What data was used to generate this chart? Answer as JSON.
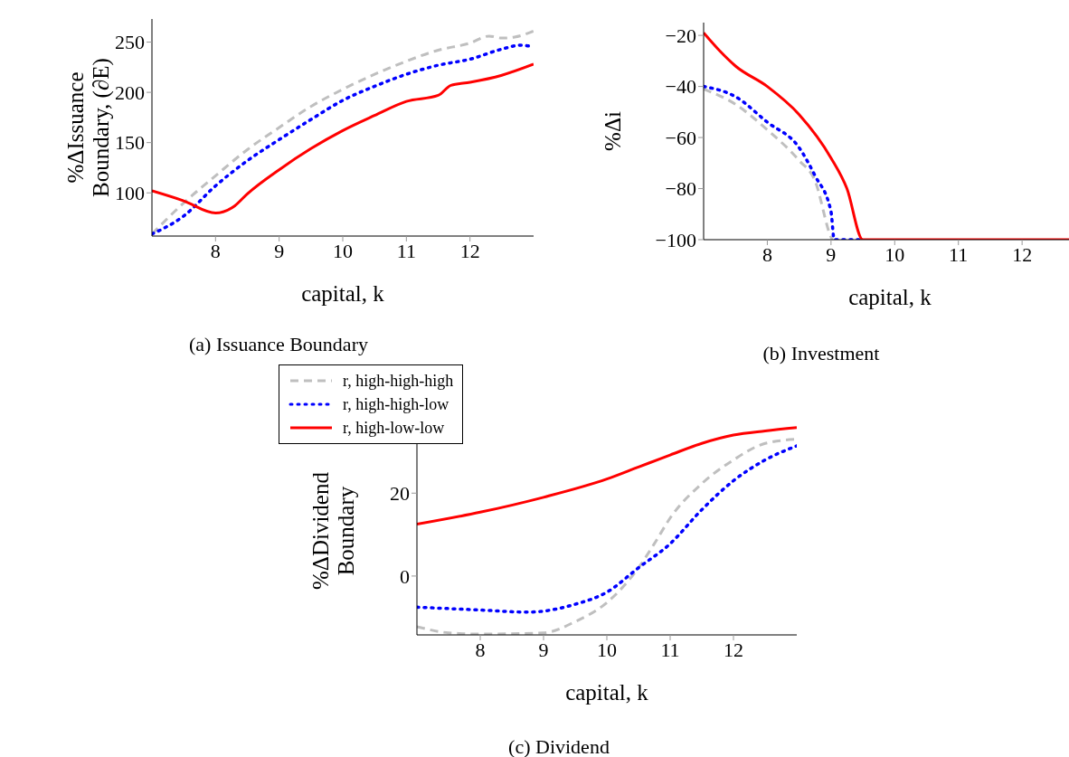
{
  "chart_data": [
    {
      "type": "line",
      "title": "(a) Issuance Boundary",
      "xlabel": "capital, k",
      "ylabel": "%ΔIssuance Boundary, (∂E)",
      "xlim": [
        7,
        13
      ],
      "xticks": [
        8,
        9,
        10,
        11,
        12
      ],
      "ylim": [
        57,
        273
      ],
      "yticks": [
        100,
        150,
        200,
        250
      ],
      "grid": false,
      "legend": false,
      "series": [
        {
          "color": "#bfbfbf",
          "line_style": "dashed",
          "x": [
            7,
            7.5,
            8,
            8.5,
            9,
            9.5,
            10,
            10.5,
            11,
            11.5,
            12,
            12.3,
            12.5,
            12.7,
            13
          ],
          "values": [
            59,
            90,
            117,
            143,
            165,
            186,
            203,
            218,
            231,
            242,
            249,
            256,
            254,
            255,
            261
          ]
        },
        {
          "color": "#0000ff",
          "line_style": "dotted",
          "x": [
            7,
            7.5,
            8,
            8.5,
            9,
            9.5,
            10,
            10.5,
            11,
            11.5,
            12,
            12.5,
            12.8,
            13
          ],
          "values": [
            59,
            77,
            107,
            132,
            153,
            173,
            192,
            206,
            218,
            227,
            233,
            243,
            247,
            245
          ]
        },
        {
          "color": "#ff0000",
          "line_style": "solid",
          "x": [
            7,
            7.5,
            8,
            8.3,
            8.5,
            9,
            9.5,
            10,
            10.5,
            11,
            11.5,
            11.7,
            12,
            12.5,
            13
          ],
          "values": [
            102,
            92,
            80,
            87,
            99,
            123,
            144,
            162,
            177,
            191,
            197,
            207,
            210,
            217,
            228
          ]
        }
      ]
    },
    {
      "type": "line",
      "title": "(b) Investment",
      "xlabel": "capital, k",
      "ylabel": "%Δi",
      "xlim": [
        7,
        12.85
      ],
      "xticks": [
        8,
        9,
        10,
        11,
        12
      ],
      "ylim": [
        -100,
        -15
      ],
      "yticks": [
        -100,
        -80,
        -60,
        -40,
        -20
      ],
      "grid": false,
      "legend": false,
      "series": [
        {
          "color": "#bfbfbf",
          "line_style": "dashed",
          "x": [
            7,
            7.5,
            8,
            8.5,
            8.75,
            9,
            9.02
          ],
          "values": [
            -41,
            -47,
            -57,
            -69,
            -77,
            -99,
            -100
          ]
        },
        {
          "color": "#0000ff",
          "line_style": "dotted",
          "x": [
            7,
            7.5,
            8,
            8.5,
            8.75,
            9,
            9.05,
            9.45
          ],
          "values": [
            -40,
            -44,
            -54,
            -64,
            -75,
            -89,
            -100,
            -100
          ]
        },
        {
          "color": "#ff0000",
          "line_style": "solid",
          "x": [
            7,
            7.25,
            7.5,
            8,
            8.5,
            9,
            9.25,
            9.5,
            12.85
          ],
          "values": [
            -19,
            -26,
            -32,
            -40,
            -51,
            -68,
            -80,
            -100,
            -100
          ]
        }
      ]
    },
    {
      "type": "line",
      "title": "(c) Dividend",
      "xlabel": "capital, k",
      "ylabel": "%ΔDividend Boundary",
      "xlim": [
        7,
        13
      ],
      "xticks": [
        8,
        9,
        10,
        11,
        12
      ],
      "ylim": [
        -14.2,
        36.2
      ],
      "yticks": [
        0,
        20
      ],
      "grid": false,
      "legend": "top left",
      "series": [
        {
          "name": "r, high-high-high",
          "color": "#bfbfbf",
          "line_style": "dashed",
          "x": [
            7,
            7.5,
            8,
            9,
            9.5,
            10,
            10.5,
            10.75,
            11,
            11.5,
            12,
            12.5,
            13
          ],
          "values": [
            -12.2,
            -13.7,
            -14,
            -13.7,
            -11,
            -6.4,
            2,
            7.8,
            14,
            22.3,
            28,
            32,
            33
          ]
        },
        {
          "name": "r, high-high-low",
          "color": "#0000ff",
          "line_style": "dotted",
          "x": [
            7,
            8,
            8.75,
            9.5,
            10,
            10.5,
            11,
            11.5,
            12,
            12.5,
            13
          ],
          "values": [
            -7.5,
            -8.2,
            -8.7,
            -6.8,
            -3.9,
            2,
            7.8,
            16,
            23,
            28,
            31.4
          ]
        },
        {
          "name": "r, high-low-low",
          "color": "#ff0000",
          "line_style": "solid",
          "x": [
            7,
            8,
            9,
            10,
            10.5,
            11,
            11.5,
            12,
            12.5,
            13
          ],
          "values": [
            12.5,
            15.4,
            19,
            23.4,
            26.3,
            29.2,
            32,
            34,
            35,
            35.8
          ]
        }
      ]
    }
  ]
}
